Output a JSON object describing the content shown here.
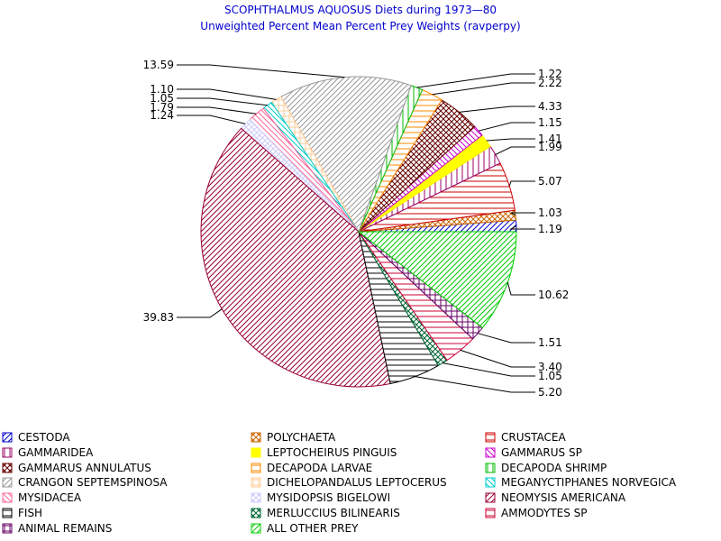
{
  "chart_data": {
    "type": "pie",
    "title": "SCOPHTHALMUS AQUOSUS Diets during 1973—80",
    "subtitle": "Unweighted Percent Mean Percent Prey  Weights (ravperpy)",
    "slices": [
      {
        "name": "CESTODA",
        "value": 1.19,
        "label": "1.19",
        "color": "#0000cc",
        "pattern": "diag-up"
      },
      {
        "name": "POLYCHAETA",
        "value": 1.03,
        "label": "1.03",
        "color": "#cc6600",
        "pattern": "cross-diag"
      },
      {
        "name": "CRUSTACEA",
        "value": 5.07,
        "label": "5.07",
        "color": "#cc0000",
        "pattern": "horizontal"
      },
      {
        "name": "GAMMARIDEA",
        "value": 1.99,
        "label": "1.99",
        "color": "#990066",
        "pattern": "vertical"
      },
      {
        "name": "LEPTOCHEIRUS PINGUIS",
        "value": 1.41,
        "label": "1.41",
        "color": "#ffff00",
        "pattern": "solid"
      },
      {
        "name": "GAMMARUS SP",
        "value": 1.15,
        "label": "1.15",
        "color": "#cc00cc",
        "pattern": "diag-down"
      },
      {
        "name": "GAMMARUS ANNULATUS",
        "value": 4.33,
        "label": "4.33",
        "color": "#660000",
        "pattern": "cross-diag"
      },
      {
        "name": "DECAPODA LARVAE",
        "value": 2.22,
        "label": "2.22",
        "color": "#ff8800",
        "pattern": "horizontal"
      },
      {
        "name": "DECAPODA SHRIMP",
        "value": 1.22,
        "label": "1.22",
        "color": "#00bb00",
        "pattern": "vertical"
      },
      {
        "name": "CRANGON SEPTEMSPINOSA",
        "value": 13.59,
        "label": "13.59",
        "color": "#999999",
        "pattern": "diag-up"
      },
      {
        "name": "DICHELOPANDALUS LEPTOCERUS",
        "value": 1.1,
        "label": "1.10",
        "color": "#ffcc99",
        "pattern": "cross"
      },
      {
        "name": "MEGANYCTIPHANES NORVEGICA",
        "value": 1.05,
        "label": "1.05",
        "color": "#00cccc",
        "pattern": "diag-down"
      },
      {
        "name": "MYSIDACEA",
        "value": 1.79,
        "label": "1.79",
        "color": "#ff6699",
        "pattern": "diag-down"
      },
      {
        "name": "MYSIDOPSIS BIGELOWI",
        "value": 1.24,
        "label": "1.24",
        "color": "#ccccff",
        "pattern": "cross-diag"
      },
      {
        "name": "NEOMYSIS AMERICANA",
        "value": 39.83,
        "label": "39.83",
        "color": "#990033",
        "pattern": "diag-up"
      },
      {
        "name": "FISH",
        "value": 5.2,
        "label": "5.20",
        "color": "#000000",
        "pattern": "horizontal"
      },
      {
        "name": "MERLUCCIUS BILINEARIS",
        "value": 1.05,
        "label": "1.05",
        "color": "#006633",
        "pattern": "cross-diag"
      },
      {
        "name": "AMMODYTES SP",
        "value": 3.4,
        "label": "3.40",
        "color": "#cc0033",
        "pattern": "horizontal"
      },
      {
        "name": "ANIMAL REMAINS",
        "value": 1.51,
        "label": "1.51",
        "color": "#660066",
        "pattern": "cross"
      },
      {
        "name": "ALL OTHER PREY",
        "value": 10.62,
        "label": "10.62",
        "color": "#00cc00",
        "pattern": "diag-up"
      }
    ]
  },
  "legend_layout_order": [
    "CESTODA",
    "POLYCHAETA",
    "CRUSTACEA",
    "GAMMARIDEA",
    "LEPTOCHEIRUS PINGUIS",
    "GAMMARUS SP",
    "GAMMARUS ANNULATUS",
    "DECAPODA LARVAE",
    "DECAPODA SHRIMP",
    "CRANGON SEPTEMSPINOSA",
    "DICHELOPANDALUS LEPTOCERUS",
    "MEGANYCTIPHANES NORVEGICA",
    "MYSIDACEA",
    "MYSIDOPSIS BIGELOWI",
    "NEOMYSIS AMERICANA",
    "FISH",
    "MERLUCCIUS BILINEARIS",
    "AMMODYTES SP",
    "ANIMAL REMAINS",
    "ALL OTHER PREY"
  ]
}
